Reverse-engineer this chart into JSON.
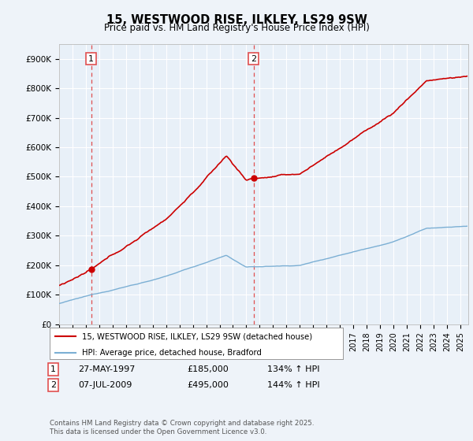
{
  "title": "15, WESTWOOD RISE, ILKLEY, LS29 9SW",
  "subtitle": "Price paid vs. HM Land Registry's House Price Index (HPI)",
  "ylim": [
    0,
    950000
  ],
  "yticks": [
    0,
    100000,
    200000,
    300000,
    400000,
    500000,
    600000,
    700000,
    800000,
    900000
  ],
  "ytick_labels": [
    "£0",
    "£100K",
    "£200K",
    "£300K",
    "£400K",
    "£500K",
    "£600K",
    "£700K",
    "£800K",
    "£900K"
  ],
  "background_color": "#eef3f9",
  "plot_bg_color": "#e8f0f8",
  "grid_color": "#ffffff",
  "hpi_line_color": "#7bafd4",
  "price_line_color": "#cc0000",
  "vline_color": "#e05050",
  "legend_line1": "15, WESTWOOD RISE, ILKLEY, LS29 9SW (detached house)",
  "legend_line2": "HPI: Average price, detached house, Bradford",
  "footer": "Contains HM Land Registry data © Crown copyright and database right 2025.\nThis data is licensed under the Open Government Licence v3.0.",
  "sale1_t": 1997.4,
  "sale1_price": 185000,
  "sale2_t": 2009.54,
  "sale2_price": 495000
}
